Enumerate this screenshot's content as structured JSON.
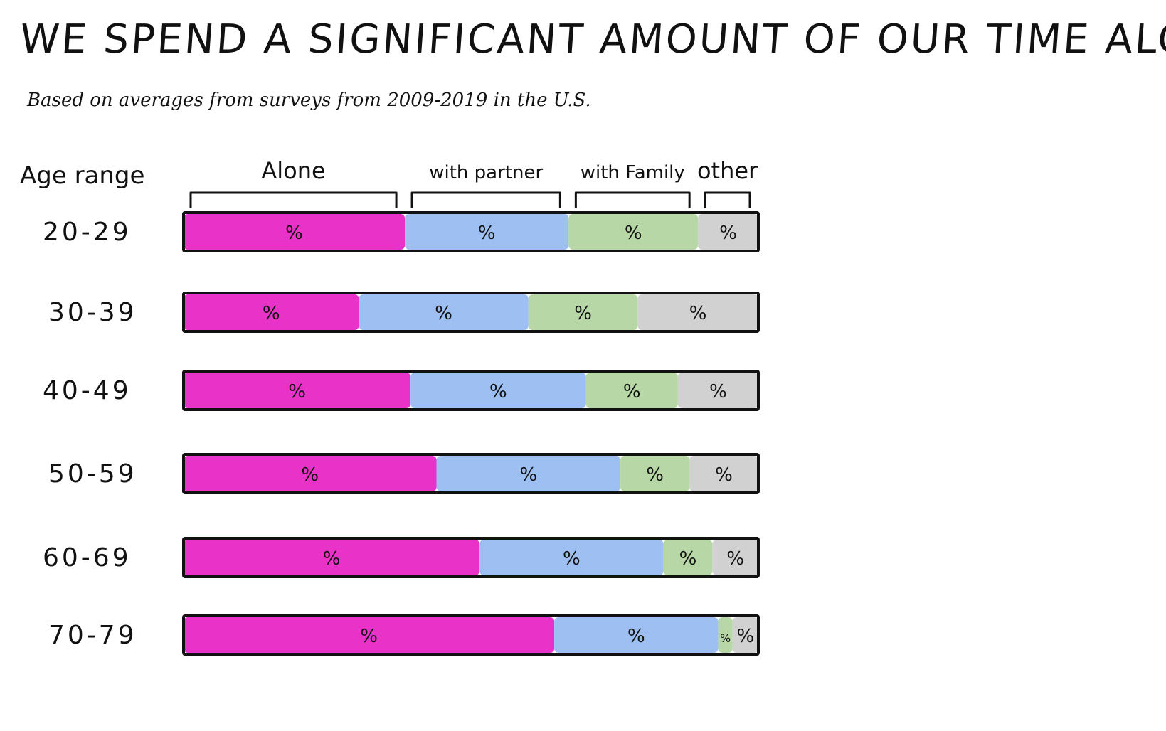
{
  "title": "WE SPEND A SIGNIFICANT AMOUNT OF OUR TIME ALONE",
  "subtitle": "Based on averages from surveys from 2009-2019 in the U.S.",
  "chart_data": {
    "type": "bar",
    "stacked": true,
    "orientation": "horizontal",
    "ylabel": "Age range",
    "categories": [
      "20-29",
      "30-39",
      "40-49",
      "50-59",
      "60-69",
      "70-79"
    ],
    "series": [
      {
        "name": "Alone",
        "color": "#e832c8",
        "values": [
          38.5,
          30.5,
          39.5,
          44.0,
          51.5,
          64.5
        ],
        "label": "%"
      },
      {
        "name": "with partner",
        "color": "#9dbff2",
        "values": [
          28.5,
          29.5,
          30.5,
          32.0,
          32.0,
          28.5
        ],
        "label": "%"
      },
      {
        "name": "with Family",
        "color": "#b7d8a6",
        "values": [
          22.5,
          19.0,
          16.0,
          12.0,
          8.5,
          2.5
        ],
        "label": "%"
      },
      {
        "name": "other",
        "color": "#d1d1d1",
        "values": [
          10.5,
          21.0,
          14.0,
          12.0,
          8.0,
          4.5
        ],
        "label": "%"
      }
    ],
    "xlim": [
      0,
      100
    ],
    "legend": "top, as brackets above the first bar",
    "grid": false
  }
}
